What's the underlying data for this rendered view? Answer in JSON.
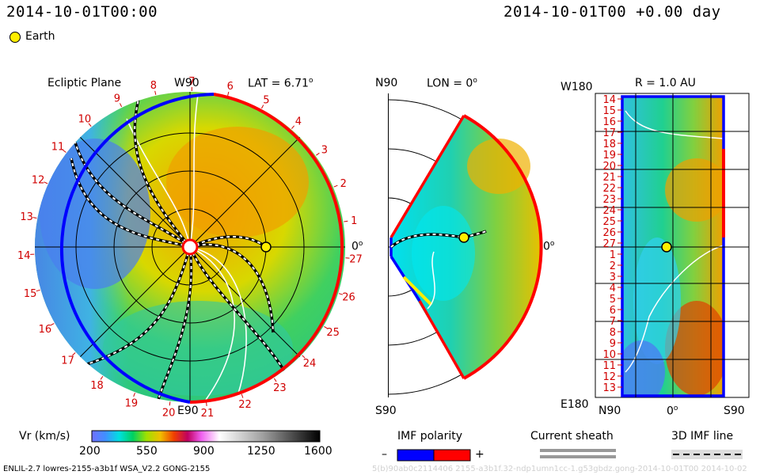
{
  "header": {
    "timestamp_left": "2014-10-01T00:00",
    "timestamp_right": "2014-10-01T00 +0.00 day"
  },
  "legend": {
    "earth_label": "Earth",
    "earth_color": "#ffee00"
  },
  "panels": {
    "ecliptic": {
      "title": "Ecliptic Plane",
      "top_label": "W90",
      "bottom_label": "E90",
      "lat_label": "LAT = 6.71",
      "degree_mark": "o",
      "right_label": "0",
      "carrington_numbers": [
        "1",
        "2",
        "3",
        "4",
        "5",
        "6",
        "7",
        "8",
        "9",
        "10",
        "11",
        "12",
        "13",
        "14",
        "15",
        "16",
        "17",
        "18",
        "19",
        "20",
        "21",
        "22",
        "23",
        "24",
        "25",
        "26",
        "27"
      ]
    },
    "meridional": {
      "top_label": "N90",
      "bottom_label": "S90",
      "lon_label": "LON = 0",
      "degree_mark": "o",
      "right_label": "0"
    },
    "sphere": {
      "title": "R = 1.0 AU",
      "top_left_label": "W180",
      "bottom_left_label": "E180",
      "bottom_left_axis": "N90",
      "bottom_mid_axis": "0",
      "bottom_right_axis": "S90",
      "degree_mark": "o",
      "row_numbers": [
        "14",
        "15",
        "16",
        "17",
        "18",
        "19",
        "20",
        "21",
        "22",
        "23",
        "24",
        "25",
        "26",
        "27",
        "1",
        "2",
        "3",
        "4",
        "5",
        "6",
        "7",
        "8",
        "9",
        "10",
        "11",
        "12",
        "13"
      ]
    }
  },
  "colorbar": {
    "label": "Vr (km/s)",
    "ticks": [
      "200",
      "550",
      "900",
      "1250",
      "1600"
    ]
  },
  "imf_polarity": {
    "label": "IMF polarity",
    "minus": "–",
    "plus": "+",
    "negative_color": "#0000ff",
    "positive_color": "#ff0000"
  },
  "current_sheath": {
    "label": "Current sheath"
  },
  "imf_line": {
    "label": "3D IMF line"
  },
  "footer": {
    "left": "ENLIL-2.7 lowres-2155-a3b1f WSA_V2.2 GONG-2155",
    "right": "5(b)90ab0c2114406 2155-a3b1f.32-ndp1umn1cc-1.g53gbdz.gong-2014-10-01T00 2014-10-02"
  },
  "chart_data": {
    "type": "heatmap",
    "quantity": "Vr (km/s)",
    "colorbar_range": [
      200,
      1600
    ],
    "colorbar_ticks": [
      200,
      550,
      900,
      1250,
      1600
    ],
    "earth": {
      "radius_au": 1.0,
      "lon_deg": 0,
      "lat_deg": 6.71
    },
    "range_rings_au": [
      0.5,
      1.0,
      1.5
    ],
    "speed_regions_ecliptic": [
      {
        "sector": "top-right",
        "vr_kms": 600
      },
      {
        "sector": "left",
        "vr_kms": 400
      },
      {
        "sector": "bottom",
        "vr_kms": 450
      }
    ]
  }
}
